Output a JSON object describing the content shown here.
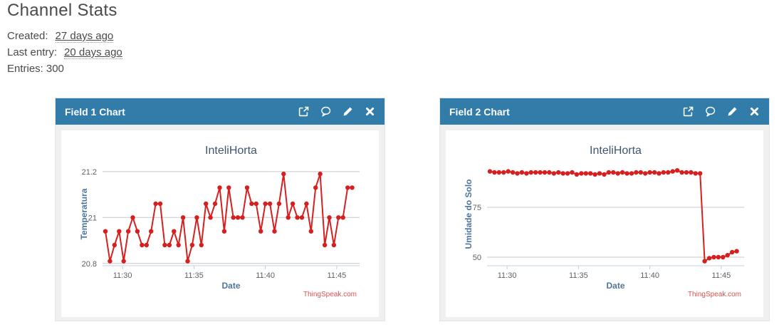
{
  "page": {
    "title": "Channel Stats",
    "stats": {
      "created_label": "Created:",
      "created_value": "27 days ago",
      "last_entry_label": "Last entry:",
      "last_entry_value": "20 days ago",
      "entries_label": "Entries:",
      "entries_value": "300"
    }
  },
  "panels": [
    {
      "title": "Field 1 Chart",
      "icons": [
        "external-link-icon",
        "comment-icon",
        "pencil-icon",
        "close-icon"
      ]
    },
    {
      "title": "Field 2 Chart",
      "icons": [
        "external-link-icon",
        "comment-icon",
        "pencil-icon",
        "close-icon"
      ]
    }
  ],
  "colors": {
    "header_blue": "#317ca8",
    "line_red": "#d62020",
    "chart_title": "#3e576f",
    "axis_title": "#4d759e",
    "tick_label": "#606060",
    "grid": "#c9c9c9",
    "axis_line": "#c0d0e0",
    "credits_red": "#d9534f",
    "panel_body_bg": "#f0f0f0"
  },
  "chart_data": [
    {
      "type": "line",
      "title": "InteliHorta",
      "xlabel": "Date",
      "ylabel": "Temperatura",
      "credits": "ThingSpeak.com",
      "legend": "none",
      "grid": "horizontal-only",
      "x_unit": "minutes after 11:00",
      "x_start_min": 28.8,
      "x_step_min": 0.32,
      "xlim": [
        28.6,
        46.6
      ],
      "ylim": [
        20.79,
        21.24
      ],
      "xticks": [
        {
          "v": 30,
          "label": "11:30"
        },
        {
          "v": 35,
          "label": "11:35"
        },
        {
          "v": 40,
          "label": "11:40"
        },
        {
          "v": 45,
          "label": "11:45"
        }
      ],
      "yticks": [
        {
          "v": 20.8,
          "label": "20.8"
        },
        {
          "v": 21.0,
          "label": "21"
        },
        {
          "v": 21.2,
          "label": "21.2"
        }
      ],
      "values": [
        20.94,
        20.81,
        20.88,
        20.94,
        20.81,
        20.94,
        21.0,
        20.94,
        20.88,
        20.88,
        20.94,
        21.06,
        21.06,
        20.88,
        20.88,
        20.94,
        20.88,
        21.0,
        20.81,
        20.88,
        21.0,
        20.88,
        21.06,
        21.0,
        21.06,
        21.13,
        20.94,
        21.13,
        21.0,
        21.0,
        21.0,
        21.13,
        21.06,
        21.06,
        20.94,
        21.06,
        21.06,
        20.94,
        21.06,
        21.19,
        21.0,
        21.06,
        21.0,
        21.0,
        21.06,
        20.94,
        21.13,
        21.19,
        20.88,
        21.0,
        20.88,
        21.0,
        21.0,
        21.13,
        21.13
      ]
    },
    {
      "type": "line",
      "title": "InteliHorta",
      "xlabel": "Date",
      "ylabel": "Umidade do Solo",
      "credits": "ThingSpeak.com",
      "legend": "none",
      "grid": "horizontal-only",
      "x_unit": "minutes after 11:00",
      "x_start_min": 28.8,
      "x_step_min": 0.32,
      "xlim": [
        28.6,
        46.6
      ],
      "ylim": [
        45.7,
        97.5
      ],
      "xticks": [
        {
          "v": 30,
          "label": "11:30"
        },
        {
          "v": 35,
          "label": "11:35"
        },
        {
          "v": 40,
          "label": "11:40"
        },
        {
          "v": 45,
          "label": "11:45"
        }
      ],
      "yticks": [
        {
          "v": 50,
          "label": "50"
        },
        {
          "v": 75,
          "label": "75"
        }
      ],
      "values": [
        93.0,
        92.5,
        92.5,
        92.5,
        93.0,
        92.5,
        92.0,
        92.5,
        92.0,
        92.5,
        92.5,
        92.5,
        92.5,
        92.5,
        92.0,
        92.5,
        92.0,
        92.0,
        92.5,
        91.5,
        92.0,
        92.0,
        92.0,
        91.5,
        92.0,
        91.5,
        92.5,
        92.5,
        92.0,
        92.5,
        92.0,
        92.0,
        92.5,
        92.5,
        92.0,
        92.5,
        92.5,
        92.0,
        92.5,
        92.5,
        93.0,
        93.5,
        92.5,
        92.5,
        92.5,
        92.0,
        92.0,
        48.0,
        49.5,
        50.0,
        50.0,
        50.0,
        51.0,
        52.5,
        53.0
      ]
    }
  ]
}
